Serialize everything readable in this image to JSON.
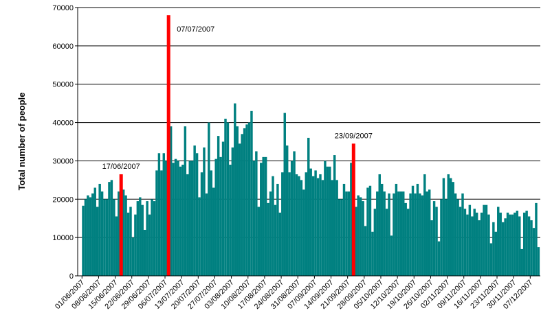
{
  "chart_data": {
    "type": "bar",
    "ylabel": "Total number of people",
    "color": "#008080",
    "highlight_color": "#ff0000",
    "ylim": [
      0,
      70000
    ],
    "yticks": [
      0,
      10000,
      20000,
      30000,
      40000,
      50000,
      60000,
      70000
    ],
    "grid": true,
    "annotations": [
      {
        "text": "17/06/2007",
        "index": 16
      },
      {
        "text": "07/07/2007",
        "index": 36
      },
      {
        "text": "23/09/2007",
        "index": 114
      }
    ],
    "categories": [
      "01/06/2007",
      null,
      null,
      null,
      null,
      null,
      null,
      "08/06/2007",
      null,
      null,
      null,
      null,
      null,
      null,
      "15/06/2007",
      null,
      null,
      null,
      null,
      null,
      null,
      "22/06/2007",
      null,
      null,
      null,
      null,
      null,
      null,
      "29/06/2007",
      null,
      null,
      null,
      null,
      null,
      null,
      "06/07/2007",
      null,
      null,
      null,
      null,
      null,
      null,
      "13/07/2007",
      null,
      null,
      null,
      null,
      null,
      null,
      "20/07/2007",
      null,
      null,
      null,
      null,
      null,
      null,
      "27/07/2007",
      null,
      null,
      null,
      null,
      null,
      null,
      "03/08/2007",
      null,
      null,
      null,
      null,
      null,
      null,
      "10/08/2007",
      null,
      null,
      null,
      null,
      null,
      null,
      "17/08/2007",
      null,
      null,
      null,
      null,
      null,
      null,
      "24/08/2007",
      null,
      null,
      null,
      null,
      null,
      null,
      "31/08/2007",
      null,
      null,
      null,
      null,
      null,
      null,
      "07/09/2007",
      null,
      null,
      null,
      null,
      null,
      null,
      "14/09/2007",
      null,
      null,
      null,
      null,
      null,
      null,
      "21/09/2007",
      null,
      null,
      null,
      null,
      null,
      null,
      "28/09/2007",
      null,
      null,
      null,
      null,
      null,
      null,
      "05/10/2007",
      null,
      null,
      null,
      null,
      null,
      null,
      "12/10/2007",
      null,
      null,
      null,
      null,
      null,
      null,
      "19/10/2007",
      null,
      null,
      null,
      null,
      null,
      null,
      "26/10/2007",
      null,
      null,
      null,
      null,
      null,
      null,
      "02/11/2007",
      null,
      null,
      null,
      null,
      null,
      null,
      "09/11/2007",
      null,
      null,
      null,
      null,
      null,
      null,
      "16/11/2007",
      null,
      null,
      null,
      null,
      null,
      null,
      "23/11/2007",
      null,
      null,
      null,
      null,
      null,
      null,
      "30/11/2007",
      null,
      null,
      null,
      null,
      null,
      null,
      "07/12/2007",
      null,
      null,
      null
    ],
    "values": [
      18300,
      20000,
      21000,
      20500,
      21500,
      23000,
      18000,
      24000,
      22000,
      20000,
      20000,
      24500,
      25000,
      20000,
      15500,
      22000,
      26500,
      22500,
      21000,
      16500,
      18000,
      10000,
      16000,
      19500,
      20500,
      18500,
      12000,
      19500,
      16000,
      20000,
      19500,
      27500,
      32000,
      27500,
      32000,
      30000,
      68000,
      39000,
      29500,
      30500,
      30000,
      28500,
      29000,
      39000,
      26500,
      30000,
      30000,
      34000,
      32000,
      20500,
      27000,
      33500,
      21500,
      40000,
      27500,
      23000,
      30500,
      36500,
      31000,
      35000,
      41000,
      40000,
      29000,
      33500,
      45000,
      39000,
      34500,
      37000,
      38500,
      39500,
      40000,
      43000,
      30000,
      32500,
      18000,
      29500,
      31000,
      31000,
      19000,
      22000,
      26000,
      18500,
      24000,
      16500,
      27000,
      42500,
      34000,
      27000,
      30000,
      32500,
      26500,
      26000,
      25000,
      22500,
      27000,
      36000,
      28000,
      26000,
      27500,
      25500,
      26500,
      25000,
      30000,
      28500,
      28500,
      25000,
      31500,
      25000,
      20000,
      20000,
      24000,
      22000,
      22000,
      29500,
      34500,
      18000,
      21000,
      20500,
      19500,
      13000,
      23000,
      23500,
      11500,
      17500,
      22000,
      26500,
      24000,
      22000,
      17500,
      21500,
      10500,
      21500,
      24000,
      22000,
      22000,
      22000,
      19000,
      17500,
      21500,
      23500,
      21500,
      24000,
      21500,
      21000,
      26500,
      22000,
      22500,
      14500,
      19500,
      18000,
      9000,
      20000,
      25500,
      20000,
      26500,
      25500,
      24500,
      21500,
      20000,
      18000,
      21500,
      17500,
      16000,
      18500,
      15500,
      17500,
      16500,
      14500,
      16500,
      18500,
      18500,
      16000,
      8500,
      14000,
      11500,
      18000,
      16500,
      14000,
      15000,
      16500,
      16000,
      16000,
      16500,
      17000,
      15500,
      7000,
      16500,
      17000,
      15500,
      14500,
      12500,
      19000,
      7500
    ]
  }
}
